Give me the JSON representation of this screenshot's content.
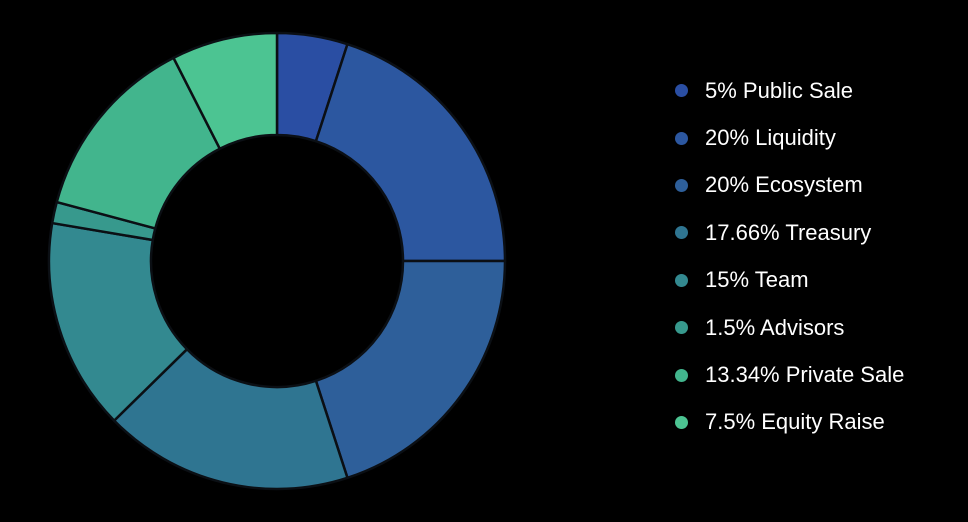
{
  "chart_data": {
    "type": "pie",
    "variant": "donut",
    "legend_position": "right",
    "slices": [
      {
        "label": "5% Public Sale",
        "value": 5,
        "color": "#2a4ea3"
      },
      {
        "label": "20% Liquidity",
        "value": 20,
        "color": "#2c57a0"
      },
      {
        "label": "20% Ecosystem",
        "value": 20,
        "color": "#2e5f9a"
      },
      {
        "label": "17.66% Treasury",
        "value": 17.66,
        "color": "#2f7591"
      },
      {
        "label": "15% Team",
        "value": 15,
        "color": "#338990"
      },
      {
        "label": "1.5% Advisors",
        "value": 1.5,
        "color": "#37998d"
      },
      {
        "label": "13.34% Private Sale",
        "value": 13.34,
        "color": "#42b58d"
      },
      {
        "label": "7.5% Equity Raise",
        "value": 7.5,
        "color": "#4cc492"
      }
    ]
  }
}
